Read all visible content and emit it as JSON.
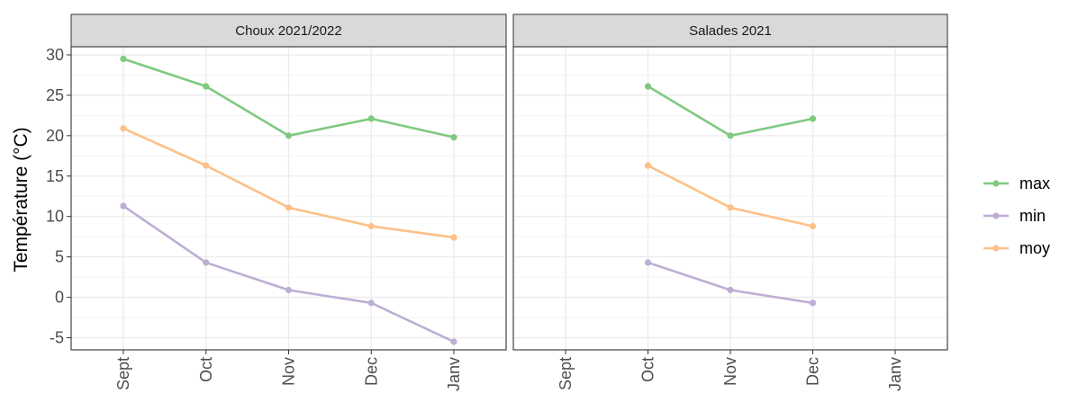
{
  "chart_data": {
    "type": "line",
    "ylabel": "Température (°C)",
    "xlabel": "",
    "ylim": [
      -6.5,
      31
    ],
    "yticks": [
      -5,
      0,
      5,
      10,
      15,
      20,
      25,
      30
    ],
    "categories": [
      "Sept",
      "Oct",
      "Nov",
      "Dec",
      "Janv"
    ],
    "grid": true,
    "legend_position": "right",
    "colors": {
      "max": "#7fc97f",
      "min": "#beaed4",
      "moy": "#fdc086"
    },
    "panels": [
      {
        "title": "Choux 2021/2022",
        "series": [
          {
            "name": "max",
            "values": [
              29.5,
              26.1,
              20.0,
              22.1,
              19.8
            ]
          },
          {
            "name": "min",
            "values": [
              11.3,
              4.3,
              0.9,
              -0.7,
              -5.5
            ]
          },
          {
            "name": "moy",
            "values": [
              20.9,
              16.3,
              11.1,
              8.8,
              7.4
            ]
          }
        ]
      },
      {
        "title": "Salades 2021",
        "series": [
          {
            "name": "max",
            "values": [
              null,
              26.1,
              20.0,
              22.1,
              null
            ]
          },
          {
            "name": "min",
            "values": [
              null,
              4.3,
              0.9,
              -0.7,
              null
            ]
          },
          {
            "name": "moy",
            "values": [
              null,
              16.3,
              11.1,
              8.8,
              null
            ]
          }
        ]
      }
    ],
    "legend": [
      "max",
      "min",
      "moy"
    ]
  }
}
